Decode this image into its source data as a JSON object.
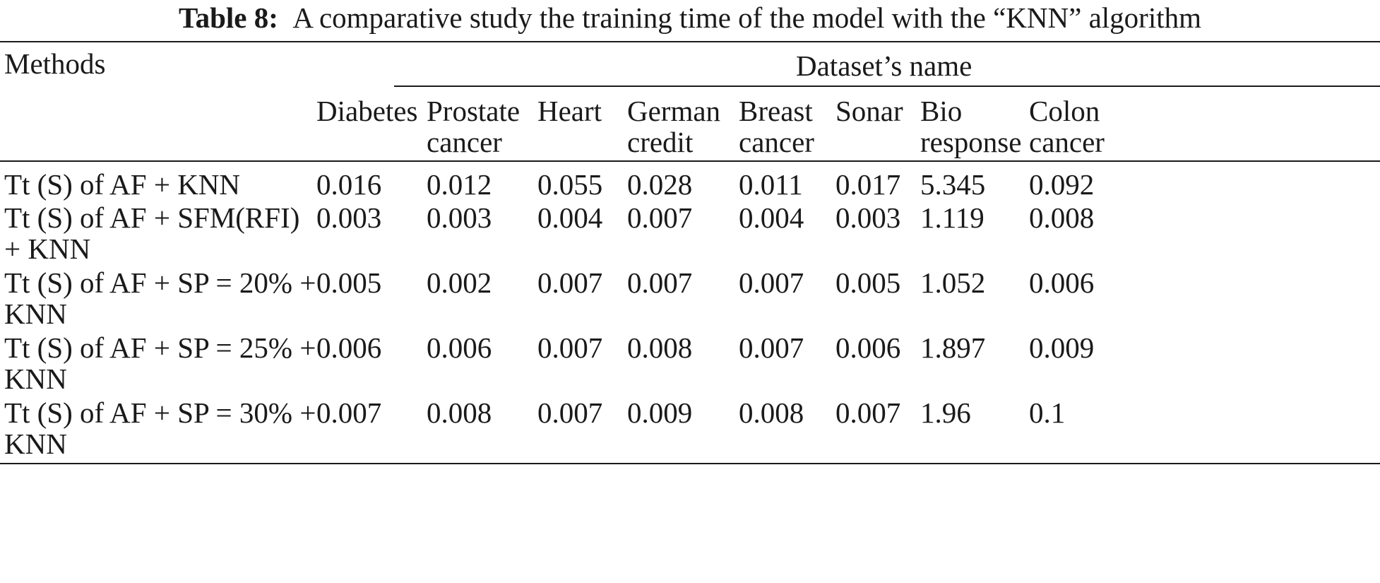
{
  "caption": {
    "label": "Table 8:",
    "text": "A comparative study the training time of the model with the “KNN” algorithm"
  },
  "table": {
    "row_header": "Methods",
    "group_header": "Dataset’s name",
    "columns": [
      [
        "Diabetes"
      ],
      [
        "Prostate",
        "cancer"
      ],
      [
        "Heart"
      ],
      [
        "German",
        "credit"
      ],
      [
        "Breast",
        "cancer"
      ],
      [
        "Sonar"
      ],
      [
        "Bio",
        "response"
      ],
      [
        "Colon",
        "cancer"
      ]
    ],
    "rows": [
      {
        "method": [
          "Tt (S) of AF + KNN"
        ],
        "values": [
          "0.016",
          "0.012",
          "0.055",
          "0.028",
          "0.011",
          "0.017",
          "5.345",
          "0.092"
        ]
      },
      {
        "method": [
          "Tt (S) of AF + SFM(RFI)",
          "+ KNN"
        ],
        "values": [
          "0.003",
          "0.003",
          "0.004",
          "0.007",
          "0.004",
          "0.003",
          "1.119",
          "0.008"
        ]
      },
      {
        "method": [
          "Tt (S) of AF + SP = 20% +",
          "KNN"
        ],
        "values": [
          "0.005",
          "0.002",
          "0.007",
          "0.007",
          "0.007",
          "0.005",
          "1.052",
          "0.006"
        ]
      },
      {
        "method": [
          "Tt (S) of AF + SP = 25% +",
          "KNN"
        ],
        "values": [
          "0.006",
          "0.006",
          "0.007",
          "0.008",
          "0.007",
          "0.006",
          "1.897",
          "0.009"
        ]
      },
      {
        "method": [
          "Tt (S) of AF + SP = 30% +",
          "KNN"
        ],
        "values": [
          "0.007",
          "0.008",
          "0.007",
          "0.009",
          "0.008",
          "0.007",
          "1.96",
          "0.1"
        ]
      }
    ]
  }
}
